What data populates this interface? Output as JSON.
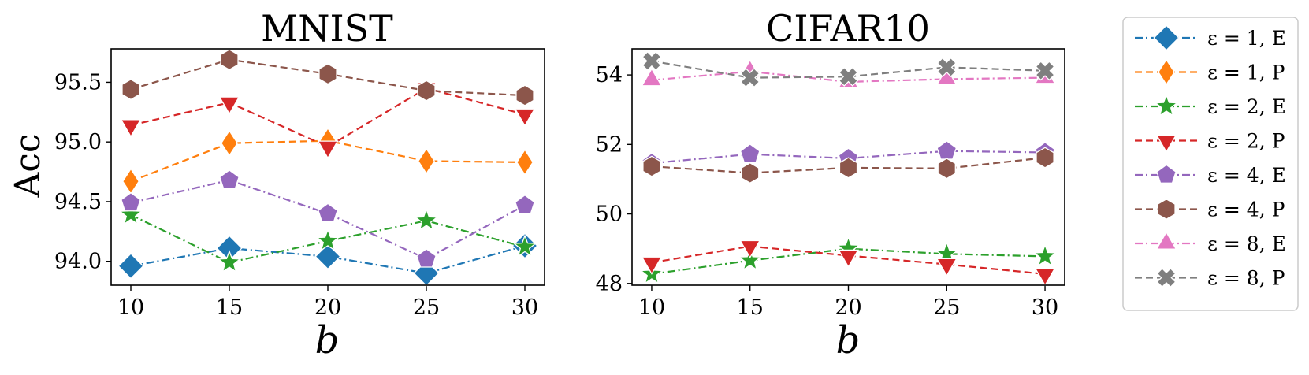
{
  "chart_data": [
    {
      "type": "line",
      "title": "MNIST",
      "xlabel": "b",
      "ylabel": "Acc",
      "x": [
        10,
        15,
        20,
        25,
        30
      ],
      "xticks": [
        "10",
        "15",
        "20",
        "25",
        "30"
      ],
      "yticks": [
        "94.0",
        "94.5",
        "95.0",
        "95.5"
      ],
      "yticks_values": [
        94.0,
        94.5,
        95.0,
        95.5
      ],
      "ylim": [
        93.8,
        95.78
      ],
      "xlim": [
        9,
        31
      ],
      "series": [
        {
          "name": "ε = 1, E",
          "values": [
            93.96,
            94.11,
            94.04,
            93.9,
            94.13
          ]
        },
        {
          "name": "ε = 1, P",
          "values": [
            94.67,
            94.99,
            95.01,
            94.84,
            94.83
          ]
        },
        {
          "name": "ε = 2, E",
          "values": [
            94.39,
            93.99,
            94.17,
            94.34,
            94.12
          ]
        },
        {
          "name": "ε = 2, P",
          "values": [
            95.14,
            95.33,
            94.96,
            95.45,
            95.23
          ]
        },
        {
          "name": "ε = 4, E",
          "values": [
            94.49,
            94.68,
            94.4,
            94.02,
            94.47
          ]
        },
        {
          "name": "ε = 4, P",
          "values": [
            95.44,
            95.69,
            95.57,
            95.43,
            95.39
          ]
        }
      ]
    },
    {
      "type": "line",
      "title": "CIFAR10",
      "xlabel": "b",
      "ylabel": "",
      "x": [
        10,
        15,
        20,
        25,
        30
      ],
      "xticks": [
        "10",
        "15",
        "20",
        "25",
        "30"
      ],
      "yticks": [
        "48",
        "50",
        "52",
        "54"
      ],
      "yticks_values": [
        48,
        50,
        52,
        54
      ],
      "ylim": [
        47.95,
        54.75
      ],
      "xlim": [
        9,
        31
      ],
      "series": [
        {
          "name": "ε = 2, E",
          "values": [
            48.27,
            48.66,
            49.0,
            48.85,
            48.78
          ]
        },
        {
          "name": "ε = 2, P",
          "values": [
            48.6,
            49.07,
            48.8,
            48.55,
            48.27
          ]
        },
        {
          "name": "ε = 4, E",
          "values": [
            51.46,
            51.72,
            51.6,
            51.81,
            51.77
          ]
        },
        {
          "name": "ε = 4, P",
          "values": [
            51.37,
            51.18,
            51.33,
            51.31,
            51.62
          ]
        },
        {
          "name": "ε = 8, E",
          "values": [
            53.85,
            54.1,
            53.8,
            53.88,
            53.92
          ]
        },
        {
          "name": "ε = 8, P",
          "values": [
            54.4,
            53.92,
            53.95,
            54.22,
            54.12
          ]
        }
      ]
    }
  ],
  "legend": {
    "position": "right",
    "entries": [
      {
        "label": "ε = 1, E",
        "color": "#1f77b4",
        "marker": "diamond",
        "dash": "dashdot"
      },
      {
        "label": "ε = 1, P",
        "color": "#ff7f0e",
        "marker": "thin-diamond",
        "dash": "dashed"
      },
      {
        "label": "ε = 2, E",
        "color": "#2ca02c",
        "marker": "star",
        "dash": "dashdot"
      },
      {
        "label": "ε = 2, P",
        "color": "#d62728",
        "marker": "triangle-down",
        "dash": "dashed"
      },
      {
        "label": "ε = 4, E",
        "color": "#9467bd",
        "marker": "pentagon",
        "dash": "dashdot"
      },
      {
        "label": "ε = 4, P",
        "color": "#8c564b",
        "marker": "hexagon",
        "dash": "dashed"
      },
      {
        "label": "ε = 8, E",
        "color": "#e377c2",
        "marker": "triangle-up",
        "dash": "dashdot"
      },
      {
        "label": "ε = 8, P",
        "color": "#7f7f7f",
        "marker": "x",
        "dash": "dashed"
      }
    ]
  }
}
